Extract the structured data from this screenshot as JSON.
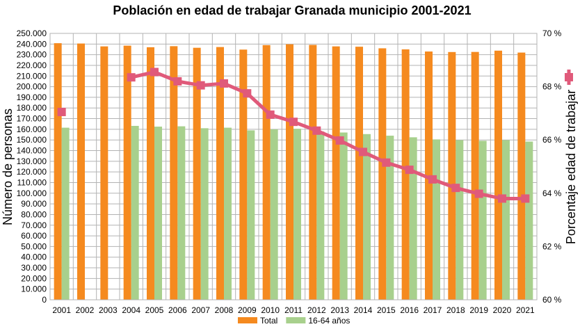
{
  "chart_data": {
    "type": "bar",
    "title": "Población en edad de trabajar Granada municipio 2001-2021",
    "ylabel": "Número de personas",
    "y2label": "Porcentaje edad de trabajar",
    "ylim": [
      0,
      250000
    ],
    "y2lim": [
      60,
      70
    ],
    "grid": true,
    "legend_position": "bottom",
    "yticks": [
      "0",
      "10.000",
      "20.000",
      "30.000",
      "40.000",
      "50.000",
      "60.000",
      "70.000",
      "80.000",
      "90.000",
      "100.000",
      "110.000",
      "120.000",
      "130.000",
      "140.000",
      "150.000",
      "160.000",
      "170.000",
      "180.000",
      "190.000",
      "200.000",
      "210.000",
      "220.000",
      "230.000",
      "240.000",
      "250.000"
    ],
    "y2ticks": [
      "60 %",
      "62 %",
      "64 %",
      "66 %",
      "68 %",
      "70 %"
    ],
    "categories": [
      "2001",
      "2002",
      "2003",
      "2004",
      "2005",
      "2006",
      "2007",
      "2008",
      "2009",
      "2010",
      "2011",
      "2012",
      "2013",
      "2014",
      "2015",
      "2016",
      "2017",
      "2018",
      "2019",
      "2020",
      "2021"
    ],
    "series": [
      {
        "name": "Total",
        "type": "bar",
        "axis": "left",
        "color": "#f58a1f",
        "values": [
          240800,
          240500,
          237800,
          238500,
          237000,
          238000,
          236500,
          237200,
          234800,
          239000,
          239800,
          239200,
          237800,
          237500,
          236000,
          235000,
          233000,
          232500,
          232600,
          233800,
          232000
        ]
      },
      {
        "name": "16-64 años",
        "type": "bar",
        "axis": "left",
        "color": "#a8d08d",
        "values": [
          161500,
          null,
          null,
          163200,
          162500,
          162800,
          161000,
          161500,
          159000,
          160000,
          160500,
          158000,
          157000,
          155500,
          154000,
          152500,
          150500,
          149800,
          149200,
          149800,
          148500
        ]
      },
      {
        "type": "line",
        "axis": "right",
        "color": "#e05a7a",
        "values": [
          67.05,
          null,
          null,
          68.35,
          68.55,
          68.2,
          68.05,
          68.12,
          67.75,
          66.95,
          66.68,
          66.35,
          65.98,
          65.55,
          65.15,
          64.88,
          64.52,
          64.2,
          63.98,
          63.8,
          63.8
        ]
      }
    ],
    "legend": [
      {
        "label": "Total",
        "color": "#f58a1f"
      },
      {
        "label": "16-64 años",
        "color": "#a8d08d"
      }
    ]
  }
}
